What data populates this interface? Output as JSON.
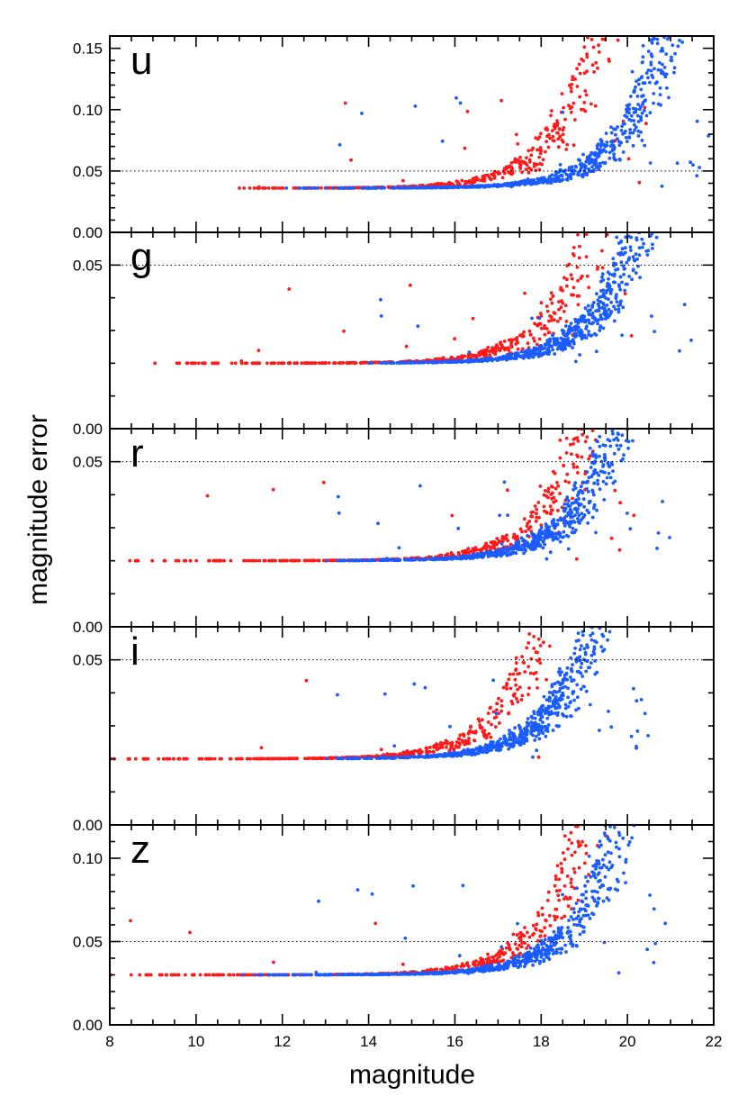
{
  "chart_data": {
    "type": "scatter",
    "xlabel": "magnitude",
    "ylabel": "magnitude error",
    "xlim": [
      8,
      22
    ],
    "x_ticks": [
      8,
      10,
      12,
      14,
      16,
      18,
      20,
      22
    ],
    "x_tick_labels": [
      "8",
      "10",
      "12",
      "14",
      "16",
      "18",
      "20",
      "22"
    ],
    "colors": {
      "series_a": "#ff1a1a",
      "series_b": "#1a5cff",
      "threshold": "#000000"
    },
    "grid": false,
    "legend": "none",
    "threshold_line": 0.05,
    "panels": [
      {
        "band": "u",
        "ylim": [
          0.0,
          0.16
        ],
        "y_ticks": [
          0.0,
          0.05,
          0.1,
          0.15
        ],
        "y_tick_labels": [
          "0.00",
          "0.05",
          "0.10",
          "0.15"
        ],
        "red_curve": {
          "floor": 0.036,
          "mag_start": 10.5,
          "mag_end": 20.5
        },
        "blue_curve": {
          "floor": 0.036,
          "mag_start": 12.0,
          "mag_end": 22.0
        }
      },
      {
        "band": "g",
        "ylim": [
          0.0,
          0.06
        ],
        "y_ticks": [
          0.0,
          0.05
        ],
        "y_tick_labels": [
          "0.00",
          "0.05"
        ],
        "red_curve": {
          "floor": 0.02,
          "mag_start": 9.0,
          "mag_end": 20.5
        },
        "blue_curve": {
          "floor": 0.02,
          "mag_start": 14.0,
          "mag_end": 21.5
        }
      },
      {
        "band": "r",
        "ylim": [
          0.0,
          0.06
        ],
        "y_ticks": [
          0.0,
          0.05
        ],
        "y_tick_labels": [
          "0.00",
          "0.05"
        ],
        "red_curve": {
          "floor": 0.02,
          "mag_start": 8.0,
          "mag_end": 20.3
        },
        "blue_curve": {
          "floor": 0.02,
          "mag_start": 13.0,
          "mag_end": 21.0
        }
      },
      {
        "band": "i",
        "ylim": [
          0.0,
          0.06
        ],
        "y_ticks": [
          0.0,
          0.05
        ],
        "y_tick_labels": [
          "0.00",
          "0.05"
        ],
        "red_curve": {
          "floor": 0.02,
          "mag_start": 8.0,
          "mag_end": 19.3
        },
        "blue_curve": {
          "floor": 0.02,
          "mag_start": 13.0,
          "mag_end": 20.5
        }
      },
      {
        "band": "z",
        "ylim": [
          0.0,
          0.12
        ],
        "y_ticks": [
          0.0,
          0.05,
          0.1
        ],
        "y_tick_labels": [
          "0.00",
          "0.05",
          "0.10"
        ],
        "red_curve": {
          "floor": 0.03,
          "mag_start": 8.0,
          "mag_end": 20.2
        },
        "blue_curve": {
          "floor": 0.03,
          "mag_start": 11.0,
          "mag_end": 21.0
        }
      }
    ]
  }
}
